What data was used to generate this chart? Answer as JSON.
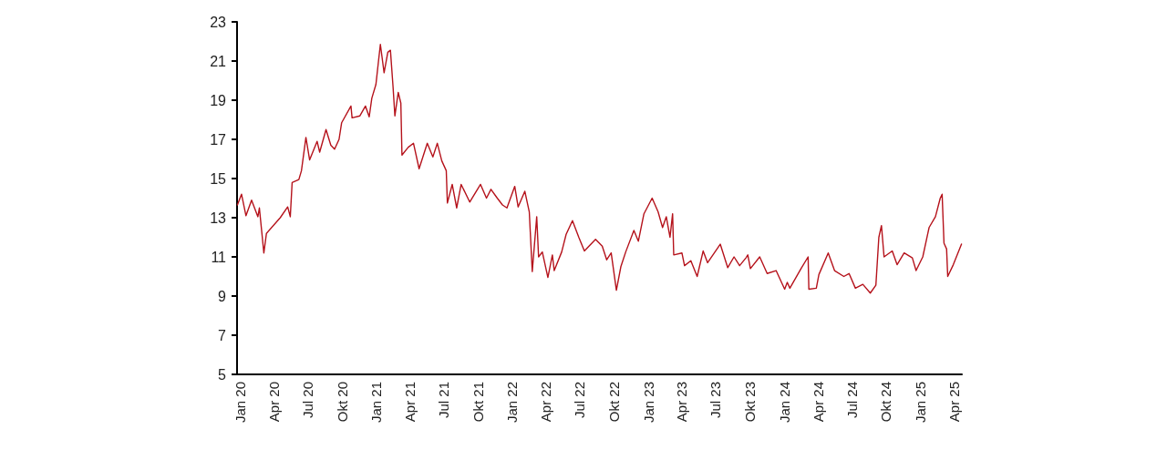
{
  "chart_data": {
    "type": "line",
    "x": [
      "2020-01-02",
      "2020-01-13",
      "2020-01-25",
      "2020-02-09",
      "2020-02-26",
      "2020-03-01",
      "2020-03-13",
      "2020-03-20",
      "2020-04-26",
      "2020-05-16",
      "2020-05-23",
      "2020-05-28",
      "2020-06-15",
      "2020-06-22",
      "2020-07-04",
      "2020-07-14",
      "2020-08-03",
      "2020-08-10",
      "2020-08-27",
      "2020-09-09",
      "2020-09-19",
      "2020-10-01",
      "2020-10-08",
      "2020-11-02",
      "2020-11-05",
      "2020-11-26",
      "2020-12-11",
      "2020-12-21",
      "2020-12-28",
      "2021-01-08",
      "2021-01-15",
      "2021-01-20",
      "2021-01-30",
      "2021-02-09",
      "2021-02-16",
      "2021-02-23",
      "2021-02-28",
      "2021-03-09",
      "2021-03-16",
      "2021-03-19",
      "2021-04-05",
      "2021-04-19",
      "2021-05-04",
      "2021-05-26",
      "2021-06-10",
      "2021-06-22",
      "2021-07-04",
      "2021-07-16",
      "2021-07-19",
      "2021-08-01",
      "2021-08-13",
      "2021-08-25",
      "2021-09-17",
      "2021-10-16",
      "2021-11-01",
      "2021-11-13",
      "2021-11-30",
      "2021-12-14",
      "2021-12-26",
      "2022-01-16",
      "2022-01-25",
      "2022-02-12",
      "2022-02-24",
      "2022-03-04",
      "2022-03-16",
      "2022-03-21",
      "2022-03-31",
      "2022-04-15",
      "2022-04-27",
      "2022-05-02",
      "2022-05-22",
      "2022-06-03",
      "2022-06-20",
      "2022-07-07",
      "2022-07-22",
      "2022-08-21",
      "2022-09-08",
      "2022-09-20",
      "2022-10-02",
      "2022-10-16",
      "2022-10-28",
      "2022-11-10",
      "2022-12-02",
      "2022-12-14",
      "2022-12-29",
      "2023-01-20",
      "2023-02-05",
      "2023-02-17",
      "2023-02-27",
      "2023-03-09",
      "2023-03-16",
      "2023-03-19",
      "2023-04-10",
      "2023-04-17",
      "2023-05-04",
      "2023-05-21",
      "2023-06-06",
      "2023-06-18",
      "2023-07-22",
      "2023-08-11",
      "2023-08-28",
      "2023-09-12",
      "2023-09-29",
      "2023-10-04",
      "2023-10-11",
      "2023-11-05",
      "2023-11-25",
      "2023-12-19",
      "2024-01-11",
      "2024-01-18",
      "2024-01-25",
      "2024-02-24",
      "2024-03-14",
      "2024-03-16",
      "2024-04-05",
      "2024-04-12",
      "2024-05-07",
      "2024-05-24",
      "2024-06-18",
      "2024-07-02",
      "2024-07-19",
      "2024-08-08",
      "2024-08-28",
      "2024-09-12",
      "2024-09-20",
      "2024-09-27",
      "2024-10-04",
      "2024-10-26",
      "2024-11-08",
      "2024-11-27",
      "2024-12-19",
      "2024-12-29",
      "2025-01-16",
      "2025-02-02",
      "2025-02-19",
      "2025-03-04",
      "2025-03-09",
      "2025-03-14",
      "2025-03-21",
      "2025-03-24",
      "2025-04-08",
      "2025-04-30"
    ],
    "series": [
      {
        "color": "#b5121b",
        "values": [
          13.65,
          14.2,
          13.1,
          13.9,
          13.05,
          13.5,
          11.2,
          12.2,
          13.0,
          13.55,
          13.05,
          14.8,
          14.95,
          15.4,
          17.1,
          15.95,
          16.9,
          16.35,
          17.5,
          16.7,
          16.5,
          17.0,
          17.85,
          18.7,
          18.1,
          18.2,
          18.7,
          18.15,
          19.1,
          19.8,
          21.0,
          21.85,
          20.4,
          21.45,
          21.55,
          19.7,
          18.2,
          19.4,
          18.85,
          16.2,
          16.6,
          16.8,
          15.5,
          16.8,
          16.1,
          16.8,
          15.9,
          15.4,
          13.75,
          14.7,
          13.5,
          14.7,
          13.8,
          14.7,
          14.0,
          14.45,
          14.0,
          13.65,
          13.5,
          14.6,
          13.55,
          14.35,
          13.3,
          10.25,
          13.05,
          11.0,
          11.25,
          9.95,
          11.1,
          10.3,
          11.25,
          12.15,
          12.85,
          12.0,
          11.3,
          11.9,
          11.55,
          10.85,
          11.2,
          9.3,
          10.5,
          11.25,
          12.35,
          11.8,
          13.2,
          14.0,
          13.3,
          12.5,
          13.05,
          12.0,
          13.2,
          11.1,
          11.2,
          10.55,
          10.8,
          10.0,
          11.3,
          10.7,
          11.65,
          10.45,
          11.0,
          10.55,
          10.95,
          11.1,
          10.4,
          11.0,
          10.15,
          10.3,
          9.35,
          9.7,
          9.4,
          10.4,
          11.0,
          9.35,
          9.4,
          10.1,
          11.2,
          10.3,
          10.0,
          10.15,
          9.4,
          9.6,
          9.15,
          9.55,
          12.0,
          12.6,
          11.0,
          11.3,
          10.6,
          11.2,
          10.95,
          10.3,
          11.0,
          12.5,
          13.05,
          14.0,
          14.2,
          11.7,
          11.4,
          10.0,
          10.6,
          11.65
        ]
      }
    ],
    "xlim": [
      "2020-01-01",
      "2025-05-01"
    ],
    "xticks": [
      {
        "value": "2020-01-01",
        "label": "Jan 20"
      },
      {
        "value": "2020-04-01",
        "label": "Apr 20"
      },
      {
        "value": "2020-07-01",
        "label": "Jul 20"
      },
      {
        "value": "2020-10-01",
        "label": "Okt 20"
      },
      {
        "value": "2021-01-01",
        "label": "Jan 21"
      },
      {
        "value": "2021-04-01",
        "label": "Apr 21"
      },
      {
        "value": "2021-07-01",
        "label": "Jul 21"
      },
      {
        "value": "2021-10-01",
        "label": "Okt 21"
      },
      {
        "value": "2022-01-01",
        "label": "Jan 22"
      },
      {
        "value": "2022-04-01",
        "label": "Apr 22"
      },
      {
        "value": "2022-07-01",
        "label": "Jul 22"
      },
      {
        "value": "2022-10-01",
        "label": "Okt 22"
      },
      {
        "value": "2023-01-01",
        "label": "Jan 23"
      },
      {
        "value": "2023-04-01",
        "label": "Apr 23"
      },
      {
        "value": "2023-07-01",
        "label": "Jul 23"
      },
      {
        "value": "2023-10-01",
        "label": "Okt 23"
      },
      {
        "value": "2024-01-01",
        "label": "Jan 24"
      },
      {
        "value": "2024-04-01",
        "label": "Apr 24"
      },
      {
        "value": "2024-07-01",
        "label": "Jul 24"
      },
      {
        "value": "2024-10-01",
        "label": "Okt 24"
      },
      {
        "value": "2025-01-01",
        "label": "Jan 25"
      },
      {
        "value": "2025-04-01",
        "label": "Apr 25"
      }
    ],
    "ylim": [
      5,
      23
    ],
    "yticks": [
      5,
      7,
      9,
      11,
      13,
      15,
      17,
      19,
      21,
      23
    ],
    "grid": false,
    "marker": "none",
    "line_style": "solid"
  }
}
